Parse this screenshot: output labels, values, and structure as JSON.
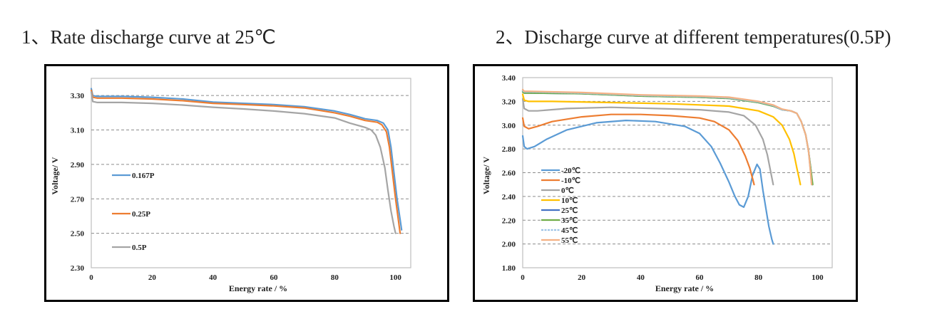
{
  "headings": {
    "chart1": "1、Rate discharge curve at 25℃",
    "chart2": "2、Discharge curve at different temperatures(0.5P)"
  },
  "chart_data": [
    {
      "type": "line",
      "title": "Rate discharge curve at 25℃",
      "xlabel": "Energy rate / %",
      "ylabel": "Voltage/ V",
      "xlim": [
        0,
        105
      ],
      "ylim": [
        2.3,
        3.4
      ],
      "xticks": [
        "0",
        "20",
        "40",
        "60",
        "80",
        "100"
      ],
      "yticks": [
        "3.30",
        "3.10",
        "2.90",
        "2.70",
        "2.50",
        "2.30"
      ],
      "ytick_values": [
        3.3,
        3.1,
        2.9,
        2.7,
        2.5,
        2.3
      ],
      "xtick_values": [
        0,
        20,
        40,
        60,
        80,
        100
      ],
      "grid": "horizontal-dashed",
      "legend_position": "left-middle",
      "series": [
        {
          "name": "0.167P",
          "color": "#5B9BD5",
          "x": [
            0,
            0.5,
            2,
            10,
            20,
            30,
            40,
            50,
            60,
            70,
            80,
            85,
            90,
            94,
            96,
            97.5,
            98.5,
            99.5,
            100.5,
            101.5,
            102
          ],
          "y": [
            3.34,
            3.3,
            3.295,
            3.295,
            3.29,
            3.28,
            3.262,
            3.255,
            3.248,
            3.235,
            3.21,
            3.19,
            3.165,
            3.155,
            3.14,
            3.1,
            3.0,
            2.85,
            2.7,
            2.58,
            2.52
          ]
        },
        {
          "name": "0.25P",
          "color": "#ED7D31",
          "x": [
            0,
            0.5,
            2,
            10,
            20,
            30,
            40,
            50,
            60,
            70,
            80,
            85,
            90,
            94,
            95.5,
            97,
            98,
            99,
            100,
            101,
            101.5
          ],
          "y": [
            3.33,
            3.29,
            3.285,
            3.285,
            3.28,
            3.27,
            3.255,
            3.248,
            3.24,
            3.228,
            3.2,
            3.18,
            3.155,
            3.145,
            3.13,
            3.09,
            3.0,
            2.85,
            2.7,
            2.57,
            2.5
          ]
        },
        {
          "name": "0.5P",
          "color": "#A5A5A5",
          "x": [
            0,
            0.5,
            2,
            10,
            20,
            30,
            40,
            50,
            60,
            70,
            80,
            85,
            90,
            92,
            93.5,
            95,
            96.5,
            97.5,
            98.5,
            99.5,
            100
          ],
          "y": [
            3.32,
            3.265,
            3.26,
            3.26,
            3.255,
            3.245,
            3.232,
            3.222,
            3.21,
            3.195,
            3.17,
            3.14,
            3.115,
            3.1,
            3.07,
            3.0,
            2.88,
            2.75,
            2.63,
            2.54,
            2.5
          ]
        }
      ]
    },
    {
      "type": "line",
      "title": "Discharge curve at different temperatures(0.5P)",
      "xlabel": "Energy rate / %",
      "ylabel": "Voltage/ V",
      "xlim": [
        0,
        105
      ],
      "ylim": [
        1.8,
        3.4
      ],
      "xticks": [
        "0",
        "20",
        "40",
        "60",
        "80",
        "100"
      ],
      "yticks": [
        "3.40",
        "3.20",
        "3.00",
        "2.80",
        "2.60",
        "2.40",
        "2.20",
        "2.00",
        "1.80"
      ],
      "ytick_values": [
        3.4,
        3.2,
        3.0,
        2.8,
        2.6,
        2.4,
        2.2,
        2.0,
        1.8
      ],
      "xtick_values": [
        0,
        20,
        40,
        60,
        80,
        100
      ],
      "grid": "horizontal-dashed",
      "legend_position": "left-bottom",
      "series": [
        {
          "name": "-20℃",
          "color": "#5B9BD5",
          "x": [
            0,
            0.5,
            1.5,
            4,
            8,
            15,
            25,
            35,
            45,
            55,
            60,
            64,
            67,
            70,
            72,
            73.5,
            75,
            76.5,
            78,
            79.5,
            80.5,
            81.5,
            82.5,
            83.5,
            84.5,
            85
          ],
          "y": [
            2.91,
            2.82,
            2.8,
            2.82,
            2.88,
            2.96,
            3.02,
            3.04,
            3.03,
            2.99,
            2.93,
            2.82,
            2.68,
            2.52,
            2.4,
            2.33,
            2.31,
            2.4,
            2.58,
            2.67,
            2.63,
            2.45,
            2.3,
            2.15,
            2.04,
            2.0
          ]
        },
        {
          "name": "-10℃",
          "color": "#ED7D31",
          "x": [
            0,
            0.5,
            2,
            5,
            10,
            20,
            30,
            40,
            50,
            60,
            65,
            70,
            73,
            75.5,
            77,
            78,
            78.5
          ],
          "y": [
            3.06,
            2.99,
            2.97,
            2.99,
            3.03,
            3.07,
            3.09,
            3.09,
            3.08,
            3.06,
            3.03,
            2.96,
            2.87,
            2.74,
            2.64,
            2.55,
            2.5
          ]
        },
        {
          "name": "0℃",
          "color": "#A5A5A5",
          "x": [
            0,
            0.5,
            2,
            5,
            15,
            30,
            45,
            60,
            70,
            75,
            79,
            81.5,
            83,
            84.2,
            85
          ],
          "y": [
            3.22,
            3.14,
            3.12,
            3.12,
            3.14,
            3.15,
            3.14,
            3.13,
            3.11,
            3.08,
            3.0,
            2.88,
            2.75,
            2.6,
            2.5
          ]
        },
        {
          "name": "10℃",
          "color": "#FFC000",
          "x": [
            0,
            0.5,
            2,
            10,
            30,
            50,
            70,
            80,
            85,
            88,
            90.5,
            92,
            93,
            93.8,
            94.2
          ],
          "y": [
            3.26,
            3.21,
            3.2,
            3.2,
            3.19,
            3.18,
            3.16,
            3.12,
            3.07,
            3.0,
            2.88,
            2.76,
            2.64,
            2.55,
            2.5
          ]
        },
        {
          "name": "25℃",
          "color": "#4472C4",
          "x": [
            0,
            0.5,
            2,
            20,
            40,
            60,
            70,
            80,
            85,
            88,
            91,
            93,
            94.5,
            96,
            97,
            97.8,
            98.3
          ],
          "y": [
            3.29,
            3.27,
            3.27,
            3.265,
            3.245,
            3.235,
            3.225,
            3.19,
            3.16,
            3.13,
            3.12,
            3.1,
            3.03,
            2.92,
            2.78,
            2.62,
            2.5
          ]
        },
        {
          "name": "35℃",
          "color": "#70AD47",
          "x": [
            0,
            0.5,
            2,
            20,
            40,
            60,
            70,
            80,
            85,
            88,
            91,
            93,
            94.5,
            96,
            97,
            97.8,
            98.4
          ],
          "y": [
            3.28,
            3.27,
            3.27,
            3.265,
            3.245,
            3.235,
            3.225,
            3.19,
            3.16,
            3.13,
            3.12,
            3.1,
            3.03,
            2.92,
            2.78,
            2.62,
            2.5
          ]
        },
        {
          "name": "45℃",
          "color": "#9DC3E6",
          "x": [
            0,
            0.5,
            2,
            20,
            40,
            60,
            70,
            80,
            85,
            88,
            91,
            93,
            94.5,
            96,
            97,
            97.6,
            98
          ],
          "y": [
            3.29,
            3.28,
            3.28,
            3.27,
            3.25,
            3.24,
            3.23,
            3.195,
            3.165,
            3.13,
            3.12,
            3.1,
            3.03,
            2.92,
            2.78,
            2.62,
            2.5
          ]
        },
        {
          "name": "55℃",
          "color": "#F4B183",
          "x": [
            0,
            0.5,
            2,
            20,
            40,
            60,
            70,
            80,
            85,
            88,
            91,
            93,
            94.5,
            96,
            97,
            97.6,
            98
          ],
          "y": [
            3.3,
            3.285,
            3.285,
            3.275,
            3.255,
            3.245,
            3.235,
            3.2,
            3.17,
            3.135,
            3.12,
            3.1,
            3.03,
            2.92,
            2.78,
            2.62,
            2.5
          ]
        }
      ]
    }
  ]
}
